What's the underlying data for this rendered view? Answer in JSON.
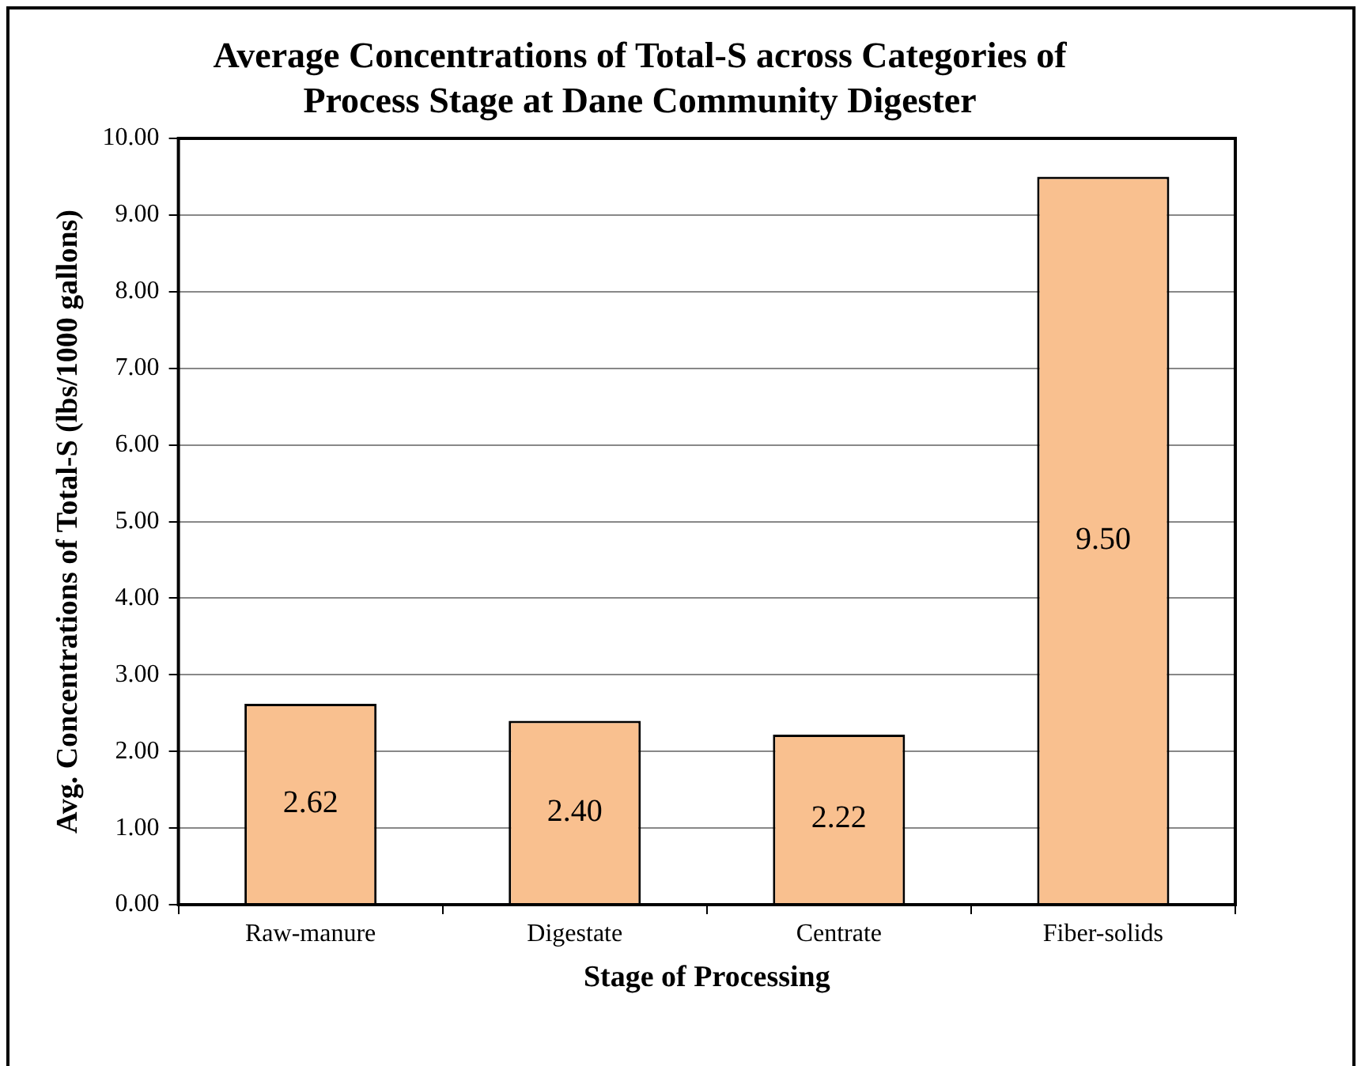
{
  "chart_data": {
    "type": "bar",
    "title": "Average Concentrations of Total-S across Categories of Process Stage at Dane Community Digester",
    "xlabel": "Stage of Processing",
    "ylabel": "Avg. Concentrations of Total-S (lbs/1000 gallons)",
    "categories": [
      "Raw-manure",
      "Digestate",
      "Centrate",
      "Fiber-solids"
    ],
    "values": [
      2.62,
      2.4,
      2.22,
      9.5
    ],
    "value_labels": [
      "2.62",
      "2.40",
      "2.22",
      "9.50"
    ],
    "color": "#f9c08f",
    "ylim": [
      0,
      10
    ],
    "yticks": [
      {
        "value": 0,
        "label": "0.00"
      },
      {
        "value": 1,
        "label": "1.00"
      },
      {
        "value": 2,
        "label": "2.00"
      },
      {
        "value": 3,
        "label": "3.00"
      },
      {
        "value": 4,
        "label": "4.00"
      },
      {
        "value": 5,
        "label": "5.00"
      },
      {
        "value": 6,
        "label": "6.00"
      },
      {
        "value": 7,
        "label": "7.00"
      },
      {
        "value": 8,
        "label": "8.00"
      },
      {
        "value": 9,
        "label": "9.00"
      },
      {
        "value": 10,
        "label": "10.00"
      }
    ],
    "grid": "y",
    "legend": false
  }
}
